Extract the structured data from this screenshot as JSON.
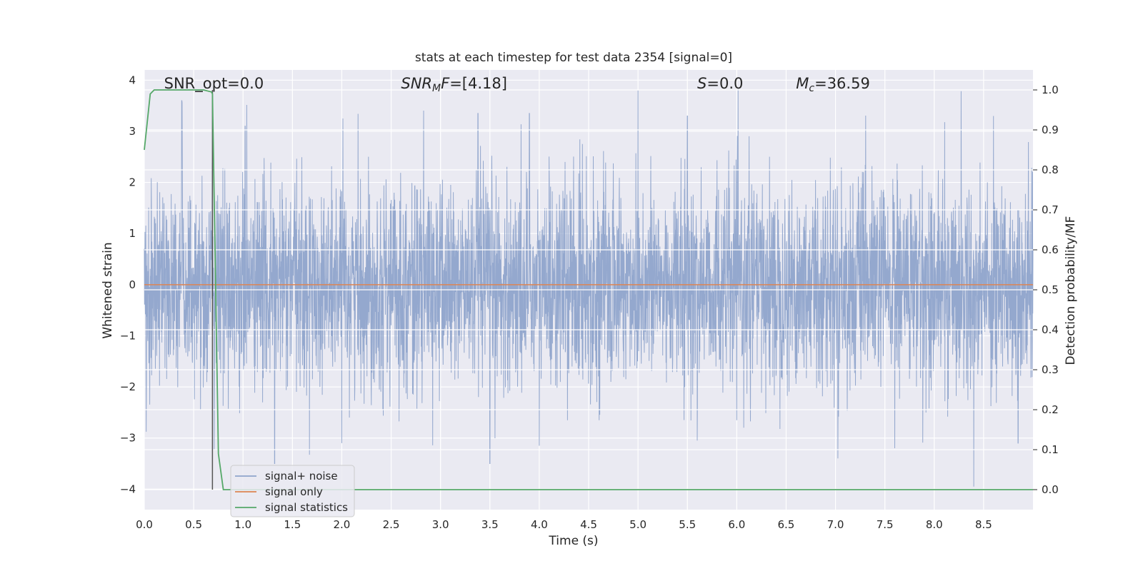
{
  "chart_data": {
    "type": "line",
    "title": "stats at each timestep for test data 2354 [signal=0]",
    "xlabel": "Time (s)",
    "ylabel_left": "Whitened strain",
    "ylabel_right": "Detection probability/MF",
    "xlim": [
      0.0,
      9.0
    ],
    "ylim_left": [
      -4.4,
      4.2
    ],
    "ylim_right": [
      -0.05,
      1.05
    ],
    "x_ticks": [
      "0.0",
      "0.5",
      "1.0",
      "1.5",
      "2.0",
      "2.5",
      "3.0",
      "3.5",
      "4.0",
      "4.5",
      "5.0",
      "5.5",
      "6.0",
      "6.5",
      "7.0",
      "7.5",
      "8.0",
      "8.5"
    ],
    "y_left_ticks": [
      "4",
      "3",
      "2",
      "1",
      "0",
      "−1",
      "−2",
      "−3",
      "−4"
    ],
    "y_right_ticks": [
      "1.0",
      "0.9",
      "0.8",
      "0.7",
      "0.6",
      "0.5",
      "0.4",
      "0.3",
      "0.2",
      "0.1",
      "0.0"
    ],
    "grid": true,
    "legend_position": "lower-left",
    "annotations": [
      {
        "name": "snr-opt",
        "text": "SNR_opt=0.0",
        "x": 0.2
      },
      {
        "name": "snr-mf",
        "text": "SNR_MF=[4.18]",
        "x": 2.6
      },
      {
        "name": "s-value",
        "text": "S=0.0",
        "x": 5.6
      },
      {
        "name": "chirp-mass",
        "text": "M_c=36.59",
        "x": 6.6
      }
    ],
    "vertical_marker_x": 0.69,
    "series": [
      {
        "name": "signal+ noise",
        "axis": "left",
        "color": "#8fa4cb",
        "kind": "noise",
        "amplitude_rms": 1.0,
        "n_samples": 4096
      },
      {
        "name": "signal only",
        "axis": "left",
        "color": "#dd8452",
        "kind": "constant",
        "value": 0.0
      },
      {
        "name": "signal statistics",
        "axis": "right",
        "color": "#55a868",
        "x": [
          0.0,
          0.06,
          0.1,
          0.2,
          0.3,
          0.4,
          0.5,
          0.6,
          0.68,
          0.69,
          0.75,
          0.8,
          1.0,
          2.0,
          3.0,
          4.0,
          5.0,
          6.0,
          7.0,
          8.0,
          9.0
        ],
        "values": [
          0.85,
          0.99,
          1.0,
          1.0,
          1.0,
          1.0,
          1.0,
          1.0,
          0.995,
          0.99,
          0.09,
          0.0,
          0.0,
          0.0,
          0.0,
          0.0,
          0.0,
          0.0,
          0.0,
          0.0,
          0.0
        ]
      }
    ],
    "spike_highlights": [
      {
        "x": 0.38,
        "y": 3.6
      },
      {
        "x": 1.02,
        "y": 3.1
      },
      {
        "x": 3.38,
        "y": 3.35
      },
      {
        "x": 3.9,
        "y": 3.35
      },
      {
        "x": 5.0,
        "y": 3.8
      },
      {
        "x": 5.5,
        "y": 3.3
      },
      {
        "x": 8.6,
        "y": 3.3
      },
      {
        "x": 8.4,
        "y": -3.95
      },
      {
        "x": 3.5,
        "y": -3.5
      },
      {
        "x": 1.32,
        "y": -3.5
      },
      {
        "x": 5.6,
        "y": -3.05
      },
      {
        "x": 7.6,
        "y": -3.2
      },
      {
        "x": 8.85,
        "y": -3.1
      },
      {
        "x": 4.0,
        "y": -3.15
      },
      {
        "x": 2.0,
        "y": -3.1
      }
    ]
  },
  "colors": {
    "axes_background": "#eaeaf2",
    "grid": "#ffffff",
    "noise": "#8fa4cb",
    "signal": "#dd8452",
    "statistic": "#55a868",
    "marker": "#555555"
  }
}
